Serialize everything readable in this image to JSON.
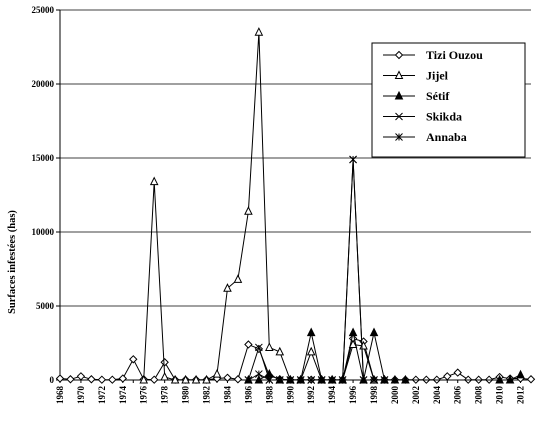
{
  "chart_data": {
    "type": "line",
    "title": "",
    "xlabel": "",
    "ylabel": "Surfaces infestées (has)",
    "ylim": [
      0,
      25000
    ],
    "yticks": [
      0,
      5000,
      10000,
      15000,
      20000,
      25000
    ],
    "xlim": [
      1968,
      2013
    ],
    "xticks": [
      1968,
      1970,
      1972,
      1974,
      1976,
      1978,
      1980,
      1982,
      1984,
      1986,
      1988,
      1990,
      1992,
      1994,
      1996,
      1998,
      2000,
      2002,
      2004,
      2006,
      2008,
      2010,
      2012
    ],
    "grid": "horizontal",
    "legend_position": "top-right",
    "series": [
      {
        "name": "Tizi Ouzou",
        "marker": "diamond-open",
        "x": [
          1968,
          1969,
          1970,
          1971,
          1972,
          1973,
          1974,
          1975,
          1976,
          1977,
          1978,
          1979,
          1980,
          1981,
          1982,
          1983,
          1984,
          1985,
          1986,
          1987,
          1988,
          1989,
          1990,
          1991,
          1992,
          1993,
          1994,
          1995,
          1996,
          1997,
          1998,
          1999,
          2000,
          2001,
          2002,
          2003,
          2004,
          2005,
          2006,
          2007,
          2008,
          2009,
          2010,
          2011,
          2012,
          2013
        ],
        "values": [
          100,
          50,
          250,
          50,
          20,
          20,
          100,
          1400,
          50,
          20,
          1200,
          20,
          20,
          20,
          20,
          100,
          150,
          50,
          2400,
          2100,
          300,
          50,
          20,
          20,
          20,
          20,
          20,
          20,
          2800,
          2600,
          20,
          20,
          20,
          20,
          20,
          20,
          20,
          250,
          500,
          20,
          20,
          20,
          200,
          100,
          100,
          50
        ]
      },
      {
        "name": "Jijel",
        "marker": "triangle-open",
        "x": [
          1976,
          1977,
          1978,
          1979,
          1980,
          1981,
          1982,
          1983,
          1984,
          1985,
          1986,
          1987,
          1988,
          1989,
          1990,
          1991,
          1992,
          1993,
          1994,
          1995,
          1996,
          1997,
          1998,
          1999
        ],
        "values": [
          0,
          13400,
          200,
          0,
          0,
          0,
          0,
          400,
          6200,
          6800,
          11400,
          23500,
          2200,
          1900,
          0,
          0,
          1900,
          0,
          0,
          0,
          2400,
          2300,
          0,
          0
        ]
      },
      {
        "name": "Sétif",
        "marker": "triangle-filled",
        "x": [
          1986,
          1987,
          1988,
          1989,
          1990,
          1991,
          1992,
          1993,
          1994,
          1995,
          1996,
          1997,
          1998,
          1999,
          2000,
          2001,
          2010,
          2011,
          2012
        ],
        "values": [
          0,
          0,
          400,
          0,
          0,
          0,
          3200,
          0,
          0,
          0,
          3200,
          0,
          3200,
          0,
          0,
          0,
          0,
          0,
          350
        ]
      },
      {
        "name": "Skikda",
        "marker": "x",
        "x": [
          1986,
          1987,
          1988,
          1989,
          1990,
          1991,
          1992,
          1993,
          1994,
          1995,
          1996,
          1997,
          1998,
          1999
        ],
        "values": [
          0,
          2200,
          0,
          0,
          0,
          0,
          0,
          0,
          0,
          0,
          14900,
          0,
          0,
          0
        ]
      },
      {
        "name": "Annaba",
        "marker": "star",
        "x": [
          1986,
          1987,
          1988,
          1989,
          1990,
          1991,
          1992,
          1993,
          1994,
          1995,
          1996,
          1997,
          1998,
          1999
        ],
        "values": [
          0,
          400,
          0,
          0,
          0,
          0,
          0,
          0,
          0,
          0,
          14900,
          0,
          0,
          0
        ]
      }
    ]
  }
}
